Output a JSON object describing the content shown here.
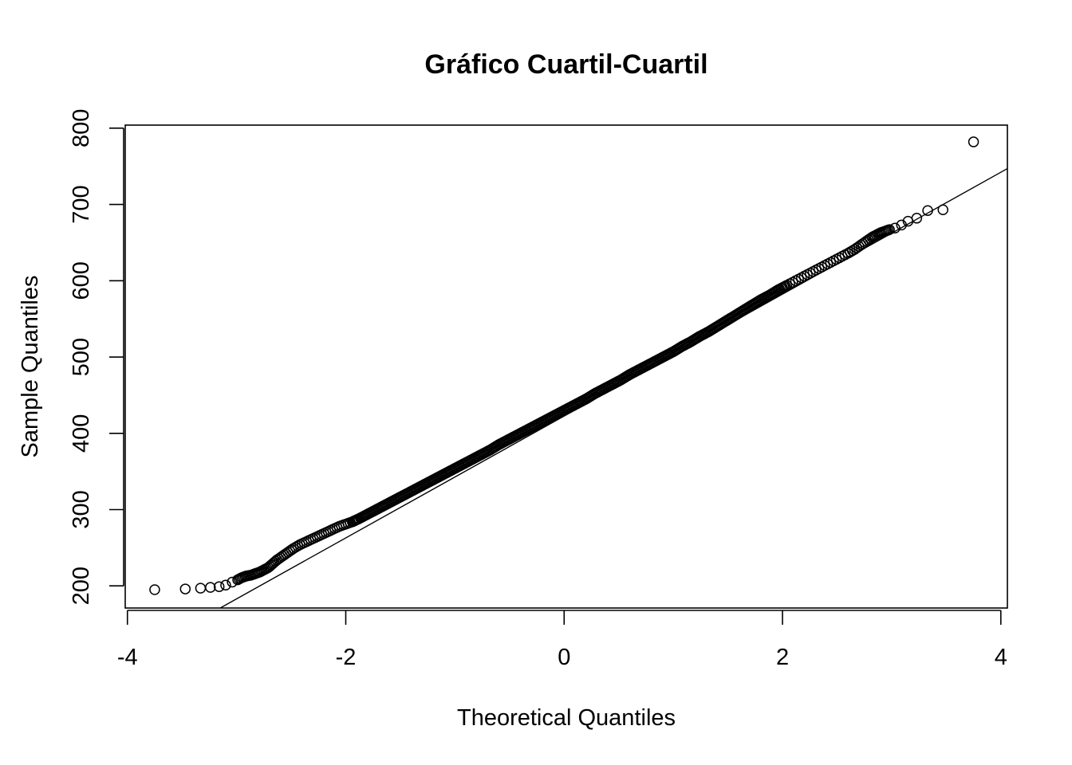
{
  "chart_data": {
    "type": "scatter",
    "title": "Gráfico Cuartil-Cuartil",
    "xlabel": "Theoretical Quantiles",
    "ylabel": "Sample Quantiles",
    "xlim": [
      -4.02,
      4.06
    ],
    "ylim": [
      171,
      804
    ],
    "xticks": [
      -4,
      -2,
      0,
      2,
      4
    ],
    "xtick_labels": [
      "-4",
      "-2",
      "0",
      "2",
      "4"
    ],
    "yticks": [
      200,
      300,
      400,
      500,
      600,
      700,
      800
    ],
    "ytick_labels": [
      "200",
      "300",
      "400",
      "500",
      "600",
      "700",
      "800"
    ],
    "grid": false,
    "legend": "none",
    "reference_line": {
      "description": "qqline",
      "x": [
        -3.15,
        4.06
      ],
      "y": [
        171,
        747
      ]
    },
    "series": [
      {
        "marker": "open-circle",
        "x": [
          -3.75,
          -3.47,
          -3.33,
          -3.24,
          -3.16,
          -3.1,
          -3.04,
          -2.99,
          -2.95,
          -2.91,
          -2.87,
          -2.83,
          -2.79,
          -2.75,
          -2.71,
          -2.67,
          -2.63,
          -2.58,
          -2.53,
          -2.48,
          -2.42,
          -2.36,
          -2.3,
          -2.24,
          -2.18,
          -2.12,
          -2.06,
          -2.0,
          -1.94,
          -1.88,
          -1.8,
          -1.72,
          -1.64,
          -1.56,
          -1.48,
          -1.4,
          -1.32,
          -1.24,
          -1.16,
          -1.08,
          -1.0,
          -0.92,
          -0.84,
          -0.76,
          -0.68,
          -0.6,
          -0.52,
          -0.44,
          -0.36,
          -0.28,
          -0.2,
          -0.12,
          -0.04,
          0.04,
          0.12,
          0.2,
          0.28,
          0.36,
          0.44,
          0.52,
          0.6,
          0.68,
          0.76,
          0.84,
          0.92,
          1.0,
          1.08,
          1.16,
          1.24,
          1.32,
          1.4,
          1.48,
          1.56,
          1.64,
          1.72,
          1.8,
          1.88,
          1.96,
          2.04,
          2.12,
          2.2,
          2.28,
          2.36,
          2.44,
          2.52,
          2.6,
          2.66,
          2.72,
          2.77,
          2.82,
          2.86,
          2.9,
          2.94,
          2.98,
          3.03,
          3.09,
          3.15,
          3.23,
          3.33,
          3.47,
          3.75
        ],
        "y": [
          195,
          196,
          197,
          198,
          199,
          201,
          205,
          208,
          211,
          213,
          214,
          216,
          218,
          221,
          224,
          229,
          234,
          239,
          244,
          249,
          254,
          258,
          262,
          266,
          270,
          274,
          278,
          281,
          284,
          288,
          294,
          300,
          306,
          312,
          318,
          324,
          330,
          336,
          342,
          348,
          354,
          360,
          366,
          372,
          378,
          385,
          391,
          397,
          403,
          409,
          415,
          421,
          427,
          433,
          439,
          445,
          452,
          458,
          464,
          470,
          477,
          483,
          489,
          495,
          501,
          507,
          514,
          520,
          527,
          533,
          540,
          547,
          554,
          561,
          568,
          575,
          581,
          588,
          594,
          600,
          606,
          612,
          618,
          624,
          630,
          636,
          641,
          647,
          652,
          657,
          660,
          663,
          665,
          667,
          669,
          673,
          678,
          682,
          692,
          693,
          782
        ]
      }
    ]
  }
}
